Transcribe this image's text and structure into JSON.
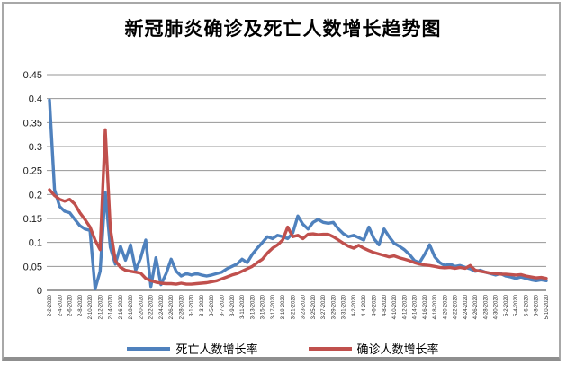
{
  "window": {
    "background": "#ffffff",
    "frame_border_color": "#a8a8a8",
    "frame_bottom_color": "#8f8f8f"
  },
  "chart_data": {
    "type": "line",
    "title": "新冠肺炎确诊及死亡人数增长趋势图",
    "xlabel": "",
    "ylabel": "",
    "ylim": [
      0,
      0.45
    ],
    "yticks": [
      "0",
      "0.05",
      "0.1",
      "0.15",
      "0.2",
      "0.25",
      "0.3",
      "0.35",
      "0.4",
      "0.45"
    ],
    "grid": "horizontal",
    "gridline_color": "#969696",
    "axis_color": "#7f7f7f",
    "tick_text_color": "#1a1a1a",
    "legend_position": "bottom",
    "x_label_every": 2,
    "x": [
      "2-2-2020",
      "2-3-2020",
      "2-4-2020",
      "2-5-2020",
      "2-6-2020",
      "2-7-2020",
      "2-8-2020",
      "2-9-2020",
      "2-10-2020",
      "2-11-2020",
      "2-12-2020",
      "2-13-2020",
      "2-14-2020",
      "2-15-2020",
      "2-16-2020",
      "2-17-2020",
      "2-18-2020",
      "2-19-2020",
      "2-20-2020",
      "2-21-2020",
      "2-22-2020",
      "2-23-2020",
      "2-24-2020",
      "2-25-2020",
      "2-26-2020",
      "2-27-2020",
      "2-28-2020",
      "2-29-2020",
      "3-1-2020",
      "3-2-2020",
      "3-3-2020",
      "3-4-2020",
      "3-5-2020",
      "3-6-2020",
      "3-7-2020",
      "3-8-2020",
      "3-9-2020",
      "3-10-2020",
      "3-11-2020",
      "3-12-2020",
      "3-13-2020",
      "3-14-2020",
      "3-15-2020",
      "3-16-2020",
      "3-17-2020",
      "3-18-2020",
      "3-19-2020",
      "3-20-2020",
      "3-21-2020",
      "3-22-2020",
      "3-23-2020",
      "3-24-2020",
      "3-25-2020",
      "3-26-2020",
      "3-27-2020",
      "3-28-2020",
      "3-29-2020",
      "3-30-2020",
      "3-31-2020",
      "4-1-2020",
      "4-2-2020",
      "4-3-2020",
      "4-4-2020",
      "4-5-2020",
      "4-6-2020",
      "4-7-2020",
      "4-8-2020",
      "4-9-2020",
      "4-10-2020",
      "4-11-2020",
      "4-12-2020",
      "4-13-2020",
      "4-14-2020",
      "4-15-2020",
      "4-16-2020",
      "4-17-2020",
      "4-18-2020",
      "4-19-2020",
      "4-20-2020",
      "4-21-2020",
      "4-22-2020",
      "4-23-2020",
      "4-24-2020",
      "4-25-2020",
      "4-26-2020",
      "4-27-2020",
      "4-28-2020",
      "4-29-2020",
      "4-30-2020",
      "5-1-2020",
      "5-2-2020",
      "5-3-2020",
      "5-4-2020",
      "5-5-2020",
      "5-6-2020",
      "5-7-2020",
      "5-8-2020",
      "5-9-2020",
      "5-10-2020"
    ],
    "series": [
      {
        "name": "死亡人数增长率",
        "color": "#4F81BD",
        "values": [
          0.397,
          0.21,
          0.175,
          0.165,
          0.162,
          0.148,
          0.135,
          0.128,
          0.125,
          0.003,
          0.04,
          0.205,
          0.09,
          0.055,
          0.092,
          0.063,
          0.095,
          0.042,
          0.068,
          0.105,
          0.008,
          0.068,
          0.012,
          0.035,
          0.065,
          0.04,
          0.03,
          0.035,
          0.032,
          0.035,
          0.032,
          0.03,
          0.032,
          0.035,
          0.038,
          0.045,
          0.05,
          0.055,
          0.065,
          0.058,
          0.075,
          0.088,
          0.1,
          0.112,
          0.108,
          0.115,
          0.112,
          0.108,
          0.12,
          0.155,
          0.138,
          0.128,
          0.142,
          0.148,
          0.142,
          0.14,
          0.142,
          0.128,
          0.118,
          0.112,
          0.115,
          0.11,
          0.105,
          0.132,
          0.108,
          0.095,
          0.128,
          0.112,
          0.098,
          0.092,
          0.085,
          0.075,
          0.062,
          0.058,
          0.075,
          0.095,
          0.07,
          0.058,
          0.052,
          0.055,
          0.05,
          0.052,
          0.048,
          0.045,
          0.04,
          0.042,
          0.038,
          0.035,
          0.032,
          0.035,
          0.03,
          0.028,
          0.025,
          0.028,
          0.025,
          0.022,
          0.02,
          0.022,
          0.02
        ]
      },
      {
        "name": "确诊人数增长率",
        "color": "#C0504D",
        "values": [
          0.21,
          0.198,
          0.19,
          0.186,
          0.19,
          0.18,
          0.162,
          0.148,
          0.132,
          0.105,
          0.085,
          0.335,
          0.13,
          0.062,
          0.048,
          0.042,
          0.04,
          0.038,
          0.036,
          0.025,
          0.02,
          0.017,
          0.015,
          0.014,
          0.014,
          0.013,
          0.015,
          0.013,
          0.013,
          0.014,
          0.015,
          0.016,
          0.018,
          0.02,
          0.024,
          0.028,
          0.032,
          0.035,
          0.04,
          0.045,
          0.05,
          0.058,
          0.065,
          0.078,
          0.088,
          0.095,
          0.105,
          0.132,
          0.112,
          0.115,
          0.108,
          0.117,
          0.118,
          0.116,
          0.117,
          0.117,
          0.112,
          0.105,
          0.098,
          0.092,
          0.088,
          0.094,
          0.088,
          0.083,
          0.079,
          0.076,
          0.073,
          0.07,
          0.072,
          0.068,
          0.065,
          0.062,
          0.058,
          0.055,
          0.053,
          0.052,
          0.05,
          0.048,
          0.047,
          0.048,
          0.046,
          0.048,
          0.046,
          0.052,
          0.042,
          0.04,
          0.038,
          0.036,
          0.035,
          0.034,
          0.034,
          0.033,
          0.032,
          0.033,
          0.03,
          0.028,
          0.026,
          0.027,
          0.025
        ]
      }
    ]
  }
}
